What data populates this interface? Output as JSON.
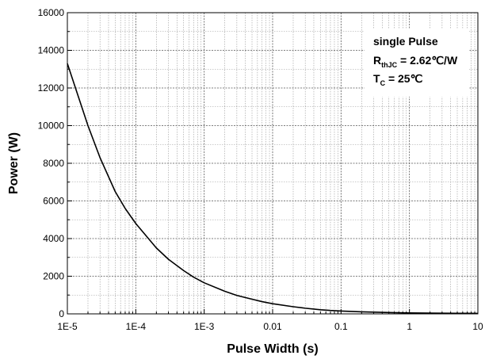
{
  "chart_data": {
    "type": "line",
    "title": "",
    "xlabel": "Pulse Width (s)",
    "ylabel": "Power (W)",
    "x_scale": "log",
    "xlim": [
      1e-05,
      10
    ],
    "ylim": [
      0,
      16000
    ],
    "x_ticks": [
      "1E-5",
      "1E-4",
      "1E-3",
      "0.01",
      "0.1",
      "1",
      "10"
    ],
    "y_ticks": [
      "0",
      "2000",
      "4000",
      "6000",
      "8000",
      "10000",
      "12000",
      "14000",
      "16000"
    ],
    "grid": true,
    "series": [
      {
        "color": "#000000",
        "x": [
          1e-05,
          2e-05,
          3e-05,
          5e-05,
          7e-05,
          0.0001,
          0.0002,
          0.0003,
          0.0005,
          0.0007,
          0.001,
          0.002,
          0.003,
          0.005,
          0.007,
          0.01,
          0.02,
          0.03,
          0.05,
          0.07,
          0.1,
          0.2,
          0.3,
          0.5,
          0.7,
          1,
          2,
          3,
          5,
          7,
          10
        ],
        "y": [
          13300,
          10000,
          8300,
          6500,
          5600,
          4800,
          3500,
          2900,
          2300,
          1950,
          1650,
          1200,
          980,
          780,
          650,
          540,
          380,
          300,
          220,
          180,
          150,
          110,
          90,
          70,
          60,
          50,
          40,
          35,
          30,
          28,
          26
        ]
      }
    ],
    "annotation": {
      "line1": "single Pulse",
      "line2_main": "R",
      "line2_sub": "thJC",
      "line2_rest": " = 2.62℃/W",
      "line3_main": "T",
      "line3_sub": "C",
      "line3_rest": " = 25℃"
    }
  }
}
